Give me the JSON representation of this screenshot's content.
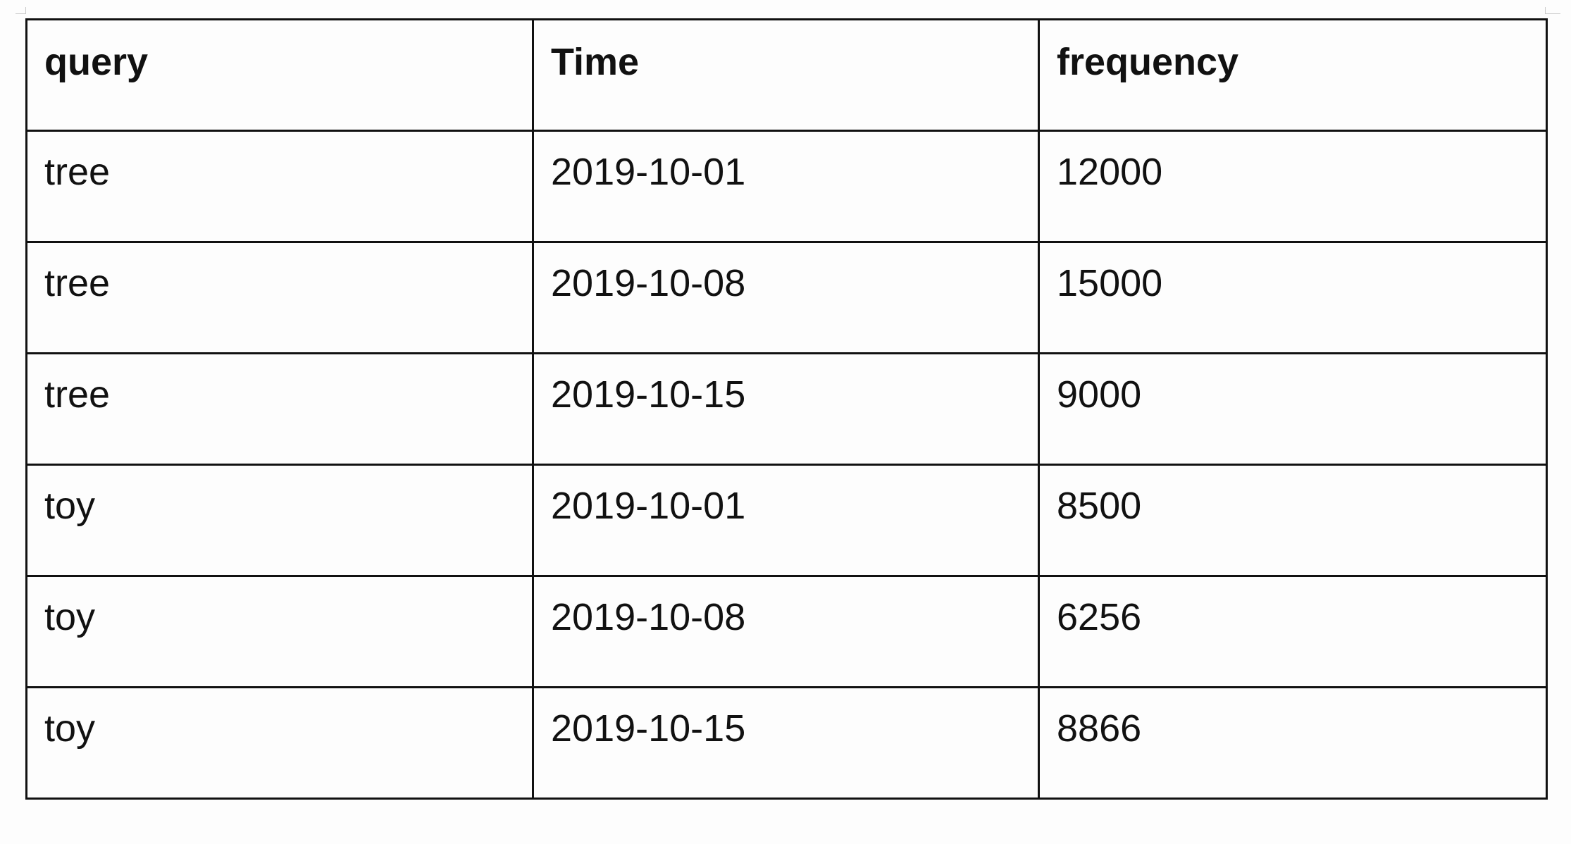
{
  "table": {
    "columns": [
      "query",
      "Time",
      "frequency"
    ],
    "rows": [
      [
        "tree",
        "2019-10-01",
        "12000"
      ],
      [
        "tree",
        "2019-10-08",
        "15000"
      ],
      [
        "tree",
        "2019-10-15",
        "9000"
      ],
      [
        "toy",
        "2019-10-01",
        "8500"
      ],
      [
        "toy",
        "2019-10-08",
        "6256"
      ],
      [
        "toy",
        "2019-10-15",
        "8866"
      ]
    ]
  }
}
